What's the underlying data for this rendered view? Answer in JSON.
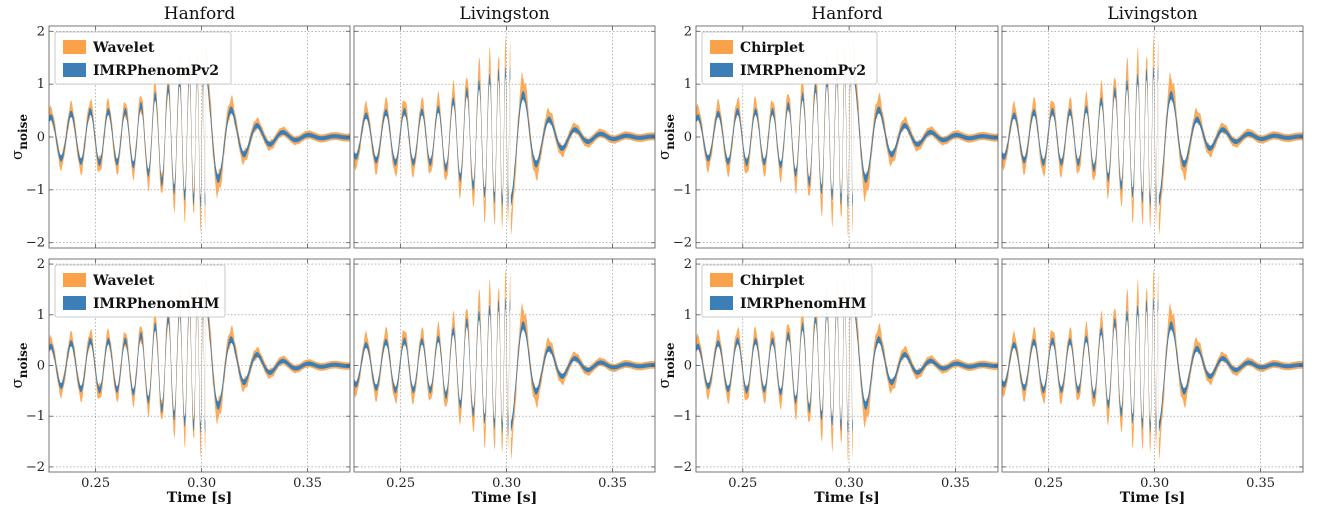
{
  "figure": {
    "x_label": "Time [s]",
    "y_label": "σ",
    "y_label_sub": "noise",
    "x_ticks": [
      "0.25",
      "0.30",
      "0.35"
    ],
    "y_ticks": [
      "−2",
      "−1",
      "0",
      "1",
      "2"
    ]
  },
  "colors": {
    "reconstruction": "#f9a24a",
    "template": "#3b7fb6",
    "grid": "#8a8a8a",
    "axes": "#555555"
  },
  "chart_data": [
    {
      "type": "area",
      "row": 0,
      "col": 0,
      "title": "Hanford",
      "xlabel": "",
      "ylabel": "σnoise",
      "xlim": [
        0.228,
        0.37
      ],
      "ylim": [
        -2.1,
        2.1
      ],
      "grid": true,
      "legend": "top-left",
      "series": [
        {
          "name": "Wavelet",
          "kind": "band",
          "color": "#f9a24a",
          "amp_peak": 1.5
        },
        {
          "name": "IMRPhenomPv2",
          "kind": "band",
          "color": "#3b7fb6",
          "amp_peak": 1.3
        }
      ]
    },
    {
      "type": "area",
      "row": 0,
      "col": 1,
      "title": "Livingston",
      "xlabel": "",
      "ylabel": "",
      "xlim": [
        0.228,
        0.37
      ],
      "ylim": [
        -2.1,
        2.1
      ],
      "grid": true,
      "series": [
        {
          "name": "Wavelet",
          "kind": "band",
          "color": "#f9a24a",
          "amp_peak": 1.6
        },
        {
          "name": "IMRPhenomPv2",
          "kind": "band",
          "color": "#3b7fb6",
          "amp_peak": 1.3
        }
      ]
    },
    {
      "type": "area",
      "row": 0,
      "col": 2,
      "title": "Hanford",
      "xlabel": "",
      "ylabel": "σnoise",
      "xlim": [
        0.228,
        0.37
      ],
      "ylim": [
        -2.1,
        2.1
      ],
      "grid": true,
      "legend": "top-left",
      "series": [
        {
          "name": "Chirplet",
          "kind": "band",
          "color": "#f9a24a",
          "amp_peak": 1.6
        },
        {
          "name": "IMRPhenomPv2",
          "kind": "band",
          "color": "#3b7fb6",
          "amp_peak": 1.3
        }
      ]
    },
    {
      "type": "area",
      "row": 0,
      "col": 3,
      "title": "Livingston",
      "xlabel": "",
      "ylabel": "",
      "xlim": [
        0.228,
        0.37
      ],
      "ylim": [
        -2.1,
        2.1
      ],
      "grid": true,
      "series": [
        {
          "name": "Chirplet",
          "kind": "band",
          "color": "#f9a24a",
          "amp_peak": 1.6
        },
        {
          "name": "IMRPhenomPv2",
          "kind": "band",
          "color": "#3b7fb6",
          "amp_peak": 1.3
        }
      ]
    },
    {
      "type": "area",
      "row": 1,
      "col": 0,
      "title": "",
      "xlabel": "Time [s]",
      "ylabel": "σnoise",
      "xlim": [
        0.228,
        0.37
      ],
      "ylim": [
        -2.1,
        2.1
      ],
      "grid": true,
      "legend": "top-left",
      "series": [
        {
          "name": "Wavelet",
          "kind": "band",
          "color": "#f9a24a",
          "amp_peak": 1.5
        },
        {
          "name": "IMRPhenomHM",
          "kind": "band",
          "color": "#3b7fb6",
          "amp_peak": 1.3
        }
      ]
    },
    {
      "type": "area",
      "row": 1,
      "col": 1,
      "title": "",
      "xlabel": "Time [s]",
      "ylabel": "",
      "xlim": [
        0.228,
        0.37
      ],
      "ylim": [
        -2.1,
        2.1
      ],
      "grid": true,
      "series": [
        {
          "name": "Wavelet",
          "kind": "band",
          "color": "#f9a24a",
          "amp_peak": 1.6
        },
        {
          "name": "IMRPhenomHM",
          "kind": "band",
          "color": "#3b7fb6",
          "amp_peak": 1.3
        }
      ]
    },
    {
      "type": "area",
      "row": 1,
      "col": 2,
      "title": "",
      "xlabel": "Time [s]",
      "ylabel": "σnoise",
      "xlim": [
        0.228,
        0.37
      ],
      "ylim": [
        -2.1,
        2.1
      ],
      "grid": true,
      "legend": "top-left",
      "series": [
        {
          "name": "Chirplet",
          "kind": "band",
          "color": "#f9a24a",
          "amp_peak": 1.6
        },
        {
          "name": "IMRPhenomHM",
          "kind": "band",
          "color": "#3b7fb6",
          "amp_peak": 1.3
        }
      ]
    },
    {
      "type": "area",
      "row": 1,
      "col": 3,
      "title": "",
      "xlabel": "Time [s]",
      "ylabel": "",
      "xlim": [
        0.228,
        0.37
      ],
      "ylim": [
        -2.1,
        2.1
      ],
      "grid": true,
      "series": [
        {
          "name": "Chirplet",
          "kind": "band",
          "color": "#f9a24a",
          "amp_peak": 1.6
        },
        {
          "name": "IMRPhenomHM",
          "kind": "band",
          "color": "#3b7fb6",
          "amp_peak": 1.3
        }
      ]
    }
  ]
}
